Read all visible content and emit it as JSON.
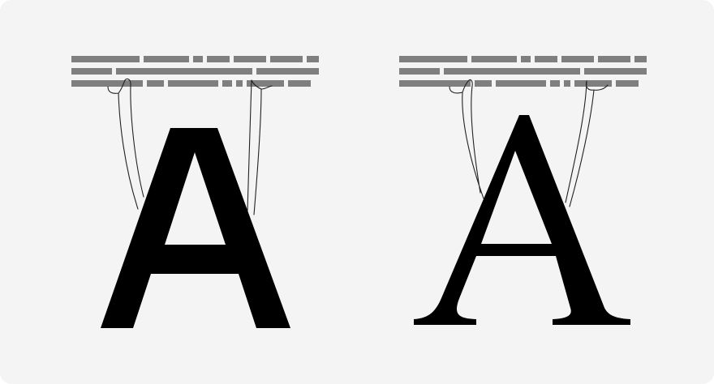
{
  "figure": {
    "panels": [
      {
        "id": "sans-serif",
        "glyph": "A",
        "style": "sans-serif",
        "text_line_rows": 3,
        "strands": 2
      },
      {
        "id": "serif",
        "glyph": "A",
        "style": "serif",
        "text_line_rows": 3,
        "strands": 2
      }
    ],
    "colors": {
      "background": "#f4f4f4",
      "text_lines": "#7f7f7f",
      "glyph": "#000000",
      "strand": "#222222"
    }
  }
}
